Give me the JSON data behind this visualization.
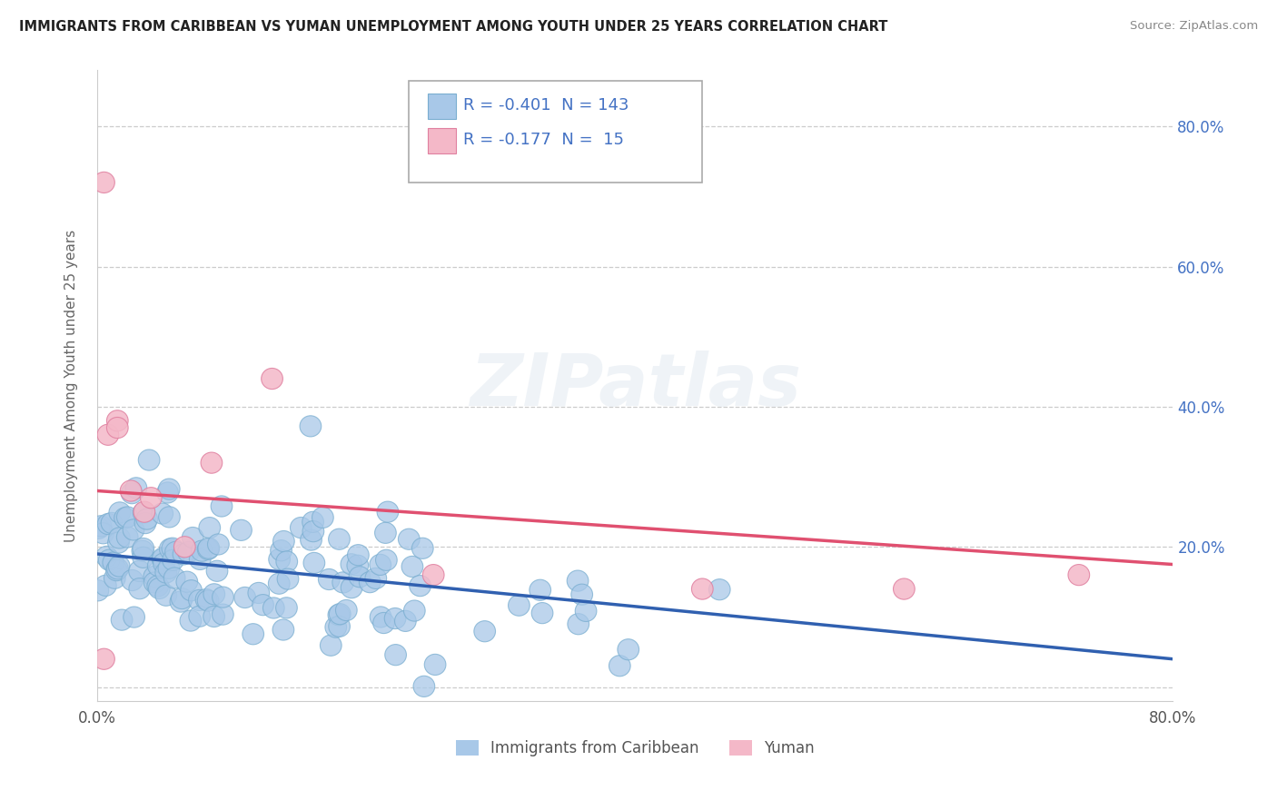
{
  "title": "IMMIGRANTS FROM CARIBBEAN VS YUMAN UNEMPLOYMENT AMONG YOUTH UNDER 25 YEARS CORRELATION CHART",
  "source": "Source: ZipAtlas.com",
  "ylabel": "Unemployment Among Youth under 25 years",
  "xlim": [
    0.0,
    0.8
  ],
  "ylim": [
    -0.02,
    0.88
  ],
  "blue_color": "#a8c8e8",
  "blue_edge_color": "#7aaed0",
  "pink_color": "#f4b8c8",
  "pink_edge_color": "#e080a0",
  "blue_line_color": "#3060b0",
  "pink_line_color": "#e05070",
  "legend_text_color": "#4472c4",
  "R_blue": -0.401,
  "N_blue": 143,
  "R_pink": -0.177,
  "N_pink": 15,
  "blue_line_x0": 0.0,
  "blue_line_y0": 0.19,
  "blue_line_x1": 0.8,
  "blue_line_y1": 0.04,
  "pink_line_x0": 0.0,
  "pink_line_y0": 0.28,
  "pink_line_x1": 0.8,
  "pink_line_y1": 0.175
}
